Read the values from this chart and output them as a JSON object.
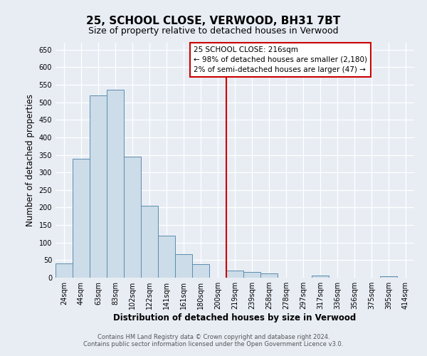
{
  "title": "25, SCHOOL CLOSE, VERWOOD, BH31 7BT",
  "subtitle": "Size of property relative to detached houses in Verwood",
  "xlabel": "Distribution of detached houses by size in Verwood",
  "ylabel": "Number of detached properties",
  "bin_labels": [
    "24sqm",
    "44sqm",
    "63sqm",
    "83sqm",
    "102sqm",
    "122sqm",
    "141sqm",
    "161sqm",
    "180sqm",
    "200sqm",
    "219sqm",
    "239sqm",
    "258sqm",
    "278sqm",
    "297sqm",
    "317sqm",
    "336sqm",
    "356sqm",
    "375sqm",
    "395sqm",
    "414sqm"
  ],
  "bar_values": [
    40,
    340,
    520,
    535,
    345,
    205,
    120,
    67,
    38,
    0,
    20,
    17,
    12,
    0,
    0,
    7,
    0,
    0,
    0,
    5,
    0
  ],
  "bar_color": "#ccdce8",
  "bar_edge_color": "#5b8db0",
  "vline_x_index": 9.5,
  "vline_color": "#cc0000",
  "annotation_line1": "25 SCHOOL CLOSE: 216sqm",
  "annotation_line2": "← 98% of detached houses are smaller (2,180)",
  "annotation_line3": "2% of semi-detached houses are larger (47) →",
  "ylim": [
    0,
    670
  ],
  "yticks": [
    0,
    50,
    100,
    150,
    200,
    250,
    300,
    350,
    400,
    450,
    500,
    550,
    600,
    650
  ],
  "footer_line1": "Contains HM Land Registry data © Crown copyright and database right 2024.",
  "footer_line2": "Contains public sector information licensed under the Open Government Licence v3.0.",
  "background_color": "#e8edf4",
  "plot_bg_color": "#e8edf4",
  "grid_color": "#ffffff",
  "title_fontsize": 11,
  "subtitle_fontsize": 9,
  "axis_label_fontsize": 8.5,
  "tick_fontsize": 7,
  "footer_fontsize": 6,
  "ann_fontsize": 7.5
}
